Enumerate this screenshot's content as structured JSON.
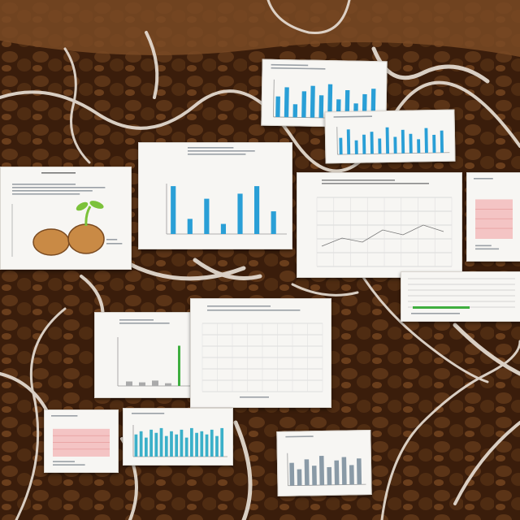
{
  "scene": {
    "description_free": true,
    "colors": {
      "soil_dark": "#2a1408",
      "soil_mid": "#4a2a12",
      "soil_light": "#8b5a34",
      "root": "#e6ddd3",
      "paper": "#f7f6f3",
      "bar_blue": "#2a9fd6",
      "bar_teal": "#3bb0c9",
      "bar_gray": "#8a9aa6",
      "line_green": "#3fae3f",
      "pink_fill": "#f2b8b8",
      "potato": "#c98a45",
      "sprout": "#7cc23a"
    }
  },
  "documents": [
    {
      "id": "doc-top-bar-chart",
      "bars": [
        0.55,
        0.8,
        0.35,
        0.7,
        0.85,
        0.6,
        0.9,
        0.5,
        0.75,
        0.4,
        0.65,
        0.8
      ]
    },
    {
      "id": "doc-right-top-bar-chart",
      "bars": [
        0.6,
        0.9,
        0.5,
        0.7,
        0.8,
        0.55,
        0.95,
        0.6,
        0.85,
        0.7,
        0.5,
        0.9,
        0.65,
        0.8
      ]
    },
    {
      "id": "doc-center-bar-chart",
      "bars": [
        0.95,
        0.3,
        0.7,
        0.2,
        0.8,
        0.95,
        0.45
      ]
    },
    {
      "id": "doc-left-seedling",
      "illustration": "potato-with-sprout"
    },
    {
      "id": "doc-center-right-grid-chart"
    },
    {
      "id": "doc-far-right-pink-chart"
    },
    {
      "id": "doc-right-table"
    },
    {
      "id": "doc-mid-left-line-chart",
      "bars": [
        0.1,
        0.08,
        0.12,
        0.06,
        0.9
      ]
    },
    {
      "id": "doc-center-grid-table"
    },
    {
      "id": "doc-bottom-left-pink-chart"
    },
    {
      "id": "doc-bottom-bar-chart",
      "bars": [
        0.7,
        0.8,
        0.6,
        0.85,
        0.75,
        0.9,
        0.65,
        0.8,
        0.7,
        0.85,
        0.6,
        0.9,
        0.75,
        0.8,
        0.7,
        0.85,
        0.65,
        0.9
      ]
    },
    {
      "id": "doc-bottom-right-gray-chart",
      "bars": [
        0.7,
        0.5,
        0.8,
        0.6,
        0.9,
        0.55,
        0.75,
        0.85,
        0.6,
        0.8
      ]
    }
  ]
}
